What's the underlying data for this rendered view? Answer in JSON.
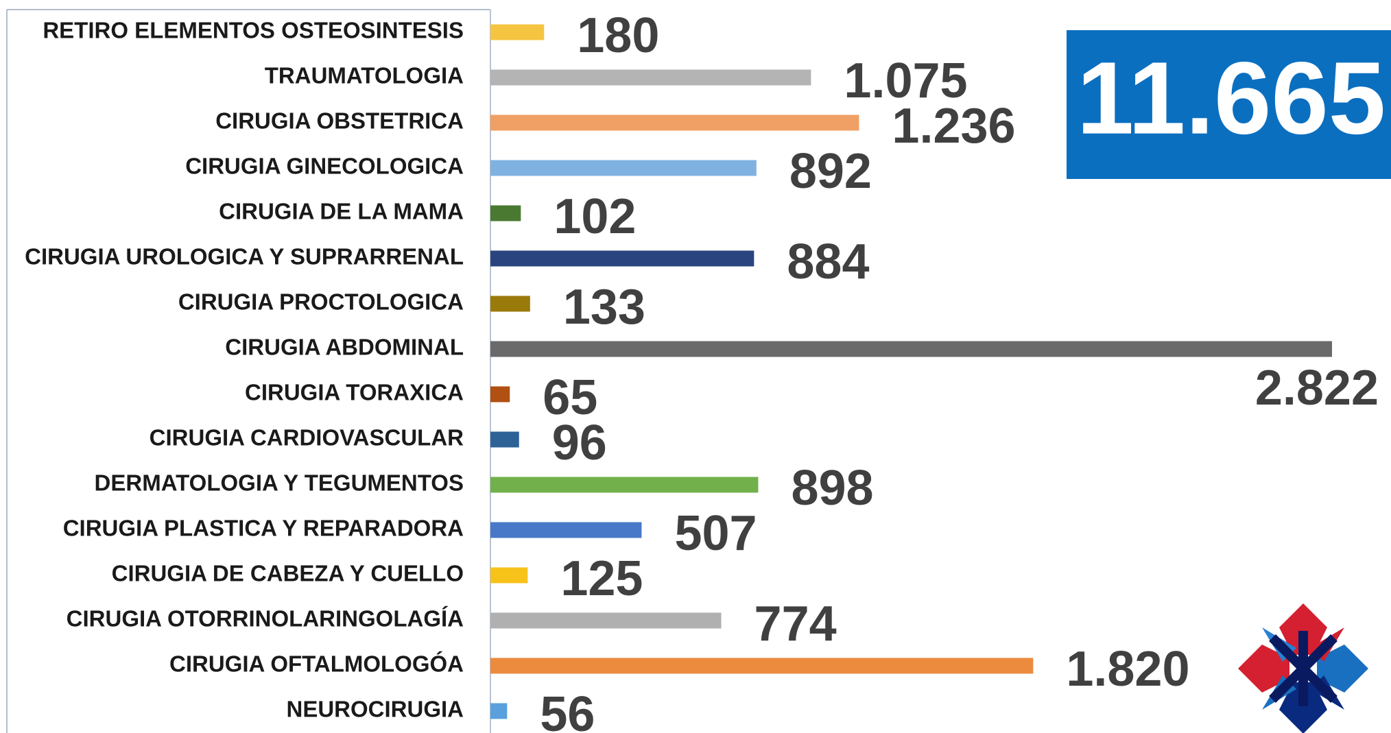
{
  "chart_data": {
    "type": "bar",
    "orientation": "horizontal",
    "categories": [
      "RETIRO ELEMENTOS OSTEOSINTESIS",
      "TRAUMATOLOGIA",
      "CIRUGIA OBSTETRICA",
      "CIRUGIA GINECOLOGICA",
      "CIRUGIA DE LA MAMA",
      "CIRUGIA UROLOGICA Y SUPRARRENAL",
      "CIRUGIA PROCTOLOGICA",
      "CIRUGIA ABDOMINAL",
      "CIRUGIA TORAXICA",
      "CIRUGIA CARDIOVASCULAR",
      "DERMATOLOGIA Y TEGUMENTOS",
      "CIRUGIA PLASTICA Y REPARADORA",
      "CIRUGIA DE CABEZA Y CUELLO",
      "CIRUGIA OTORRINOLARINGOLAGÍA",
      "CIRUGIA OFTALMOLOGÓA",
      "NEUROCIRUGIA"
    ],
    "values": [
      180,
      1075,
      1236,
      892,
      102,
      884,
      133,
      2822,
      65,
      96,
      898,
      507,
      125,
      774,
      1820,
      56
    ],
    "value_labels": [
      "180",
      "1.075",
      "1.236",
      "892",
      "102",
      "884",
      "133",
      "2.822",
      "65",
      "96",
      "898",
      "507",
      "125",
      "774",
      "1.820",
      "56"
    ],
    "colors": [
      "#f5c542",
      "#b4b4b4",
      "#f0a064",
      "#7fb2e0",
      "#4a7a32",
      "#2a4480",
      "#9a7a0a",
      "#6a6a6a",
      "#b05012",
      "#2e6296",
      "#72b04c",
      "#4a78c8",
      "#f7c21a",
      "#b0b0b0",
      "#ec8a3e",
      "#5aa0dc"
    ],
    "total": {
      "value": 11665,
      "label": "11.665"
    }
  }
}
